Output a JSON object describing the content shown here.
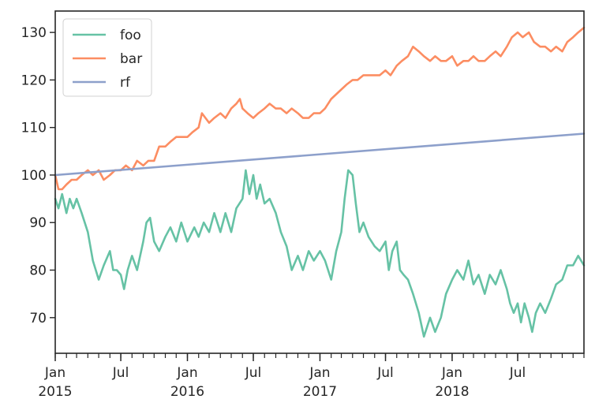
{
  "chart_data": {
    "type": "line",
    "title": "",
    "xlabel": "",
    "ylabel": "",
    "x_range": [
      "2015-01-01",
      "2018-12-31"
    ],
    "ylim": [
      62.5,
      134.5
    ],
    "grid": false,
    "legend_placement": "top-left",
    "y_ticks": [
      70,
      80,
      90,
      100,
      110,
      120,
      130
    ],
    "x_major_ticks": [
      {
        "date": "2015-01-01",
        "label": "Jan",
        "year": "2015"
      },
      {
        "date": "2015-07-01",
        "label": "Jul",
        "year": ""
      },
      {
        "date": "2016-01-01",
        "label": "Jan",
        "year": "2016"
      },
      {
        "date": "2016-07-01",
        "label": "Jul",
        "year": ""
      },
      {
        "date": "2017-01-01",
        "label": "Jan",
        "year": "2017"
      },
      {
        "date": "2017-07-01",
        "label": "Jul",
        "year": ""
      },
      {
        "date": "2018-01-01",
        "label": "Jan",
        "year": "2018"
      },
      {
        "date": "2018-07-01",
        "label": "Jul",
        "year": ""
      }
    ],
    "x_minor_ticks": "monthly",
    "colors": {
      "foo": "#66c2a5",
      "bar": "#fc8d62",
      "rf": "#8da0cb"
    },
    "series": [
      {
        "name": "foo",
        "color": "#66c2a5",
        "points": [
          [
            "2015-01-01",
            95
          ],
          [
            "2015-01-10",
            93
          ],
          [
            "2015-01-20",
            96
          ],
          [
            "2015-02-01",
            92
          ],
          [
            "2015-02-10",
            95
          ],
          [
            "2015-02-20",
            93
          ],
          [
            "2015-03-01",
            95
          ],
          [
            "2015-03-15",
            92
          ],
          [
            "2015-04-01",
            88
          ],
          [
            "2015-04-15",
            82
          ],
          [
            "2015-05-01",
            78
          ],
          [
            "2015-05-15",
            81
          ],
          [
            "2015-06-01",
            84
          ],
          [
            "2015-06-10",
            80
          ],
          [
            "2015-06-20",
            80
          ],
          [
            "2015-07-01",
            79
          ],
          [
            "2015-07-10",
            76
          ],
          [
            "2015-07-20",
            80
          ],
          [
            "2015-08-01",
            83
          ],
          [
            "2015-08-15",
            80
          ],
          [
            "2015-09-01",
            86
          ],
          [
            "2015-09-10",
            90
          ],
          [
            "2015-09-20",
            91
          ],
          [
            "2015-10-01",
            86
          ],
          [
            "2015-10-15",
            84
          ],
          [
            "2015-11-01",
            87
          ],
          [
            "2015-11-15",
            89
          ],
          [
            "2015-12-01",
            86
          ],
          [
            "2015-12-15",
            90
          ],
          [
            "2016-01-01",
            86
          ],
          [
            "2016-01-20",
            89
          ],
          [
            "2016-02-01",
            87
          ],
          [
            "2016-02-15",
            90
          ],
          [
            "2016-03-01",
            88
          ],
          [
            "2016-03-15",
            92
          ],
          [
            "2016-04-01",
            88
          ],
          [
            "2016-04-15",
            92
          ],
          [
            "2016-05-01",
            88
          ],
          [
            "2016-05-15",
            93
          ],
          [
            "2016-06-01",
            95
          ],
          [
            "2016-06-10",
            101
          ],
          [
            "2016-06-20",
            96
          ],
          [
            "2016-07-01",
            100
          ],
          [
            "2016-07-10",
            95
          ],
          [
            "2016-07-20",
            98
          ],
          [
            "2016-08-01",
            94
          ],
          [
            "2016-08-15",
            95
          ],
          [
            "2016-09-01",
            92
          ],
          [
            "2016-09-15",
            88
          ],
          [
            "2016-10-01",
            85
          ],
          [
            "2016-10-15",
            80
          ],
          [
            "2016-11-01",
            83
          ],
          [
            "2016-11-15",
            80
          ],
          [
            "2016-12-01",
            84
          ],
          [
            "2016-12-15",
            82
          ],
          [
            "2017-01-01",
            84
          ],
          [
            "2017-01-15",
            82
          ],
          [
            "2017-02-01",
            78
          ],
          [
            "2017-02-15",
            84
          ],
          [
            "2017-03-01",
            88
          ],
          [
            "2017-03-10",
            95
          ],
          [
            "2017-03-20",
            101
          ],
          [
            "2017-04-01",
            100
          ],
          [
            "2017-04-10",
            94
          ],
          [
            "2017-04-20",
            88
          ],
          [
            "2017-05-01",
            90
          ],
          [
            "2017-05-15",
            87
          ],
          [
            "2017-06-01",
            85
          ],
          [
            "2017-06-15",
            84
          ],
          [
            "2017-07-01",
            86
          ],
          [
            "2017-07-10",
            80
          ],
          [
            "2017-07-20",
            84
          ],
          [
            "2017-08-01",
            86
          ],
          [
            "2017-08-10",
            80
          ],
          [
            "2017-08-20",
            79
          ],
          [
            "2017-09-01",
            78
          ],
          [
            "2017-09-15",
            75
          ],
          [
            "2017-10-01",
            71
          ],
          [
            "2017-10-15",
            66
          ],
          [
            "2017-11-01",
            70
          ],
          [
            "2017-11-15",
            67
          ],
          [
            "2017-12-01",
            70
          ],
          [
            "2017-12-15",
            75
          ],
          [
            "2018-01-01",
            78
          ],
          [
            "2018-01-15",
            80
          ],
          [
            "2018-02-01",
            78
          ],
          [
            "2018-02-15",
            82
          ],
          [
            "2018-03-01",
            77
          ],
          [
            "2018-03-15",
            79
          ],
          [
            "2018-04-01",
            75
          ],
          [
            "2018-04-15",
            79
          ],
          [
            "2018-05-01",
            77
          ],
          [
            "2018-05-15",
            80
          ],
          [
            "2018-06-01",
            76
          ],
          [
            "2018-06-10",
            73
          ],
          [
            "2018-06-20",
            71
          ],
          [
            "2018-07-01",
            73
          ],
          [
            "2018-07-10",
            69
          ],
          [
            "2018-07-20",
            73
          ],
          [
            "2018-08-01",
            70
          ],
          [
            "2018-08-10",
            67
          ],
          [
            "2018-08-20",
            71
          ],
          [
            "2018-09-01",
            73
          ],
          [
            "2018-09-15",
            71
          ],
          [
            "2018-10-01",
            74
          ],
          [
            "2018-10-15",
            77
          ],
          [
            "2018-11-01",
            78
          ],
          [
            "2018-11-15",
            81
          ],
          [
            "2018-12-01",
            81
          ],
          [
            "2018-12-15",
            83
          ],
          [
            "2018-12-31",
            81
          ]
        ]
      },
      {
        "name": "bar",
        "color": "#fc8d62",
        "points": [
          [
            "2015-01-01",
            100
          ],
          [
            "2015-01-10",
            97
          ],
          [
            "2015-01-20",
            97
          ],
          [
            "2015-02-01",
            98
          ],
          [
            "2015-02-15",
            99
          ],
          [
            "2015-03-01",
            99
          ],
          [
            "2015-03-15",
            100
          ],
          [
            "2015-04-01",
            101
          ],
          [
            "2015-04-15",
            100
          ],
          [
            "2015-05-01",
            101
          ],
          [
            "2015-05-15",
            99
          ],
          [
            "2015-06-01",
            100
          ],
          [
            "2015-06-15",
            101
          ],
          [
            "2015-07-01",
            101
          ],
          [
            "2015-07-15",
            102
          ],
          [
            "2015-08-01",
            101
          ],
          [
            "2015-08-15",
            103
          ],
          [
            "2015-09-01",
            102
          ],
          [
            "2015-09-15",
            103
          ],
          [
            "2015-10-01",
            103
          ],
          [
            "2015-10-15",
            106
          ],
          [
            "2015-11-01",
            106
          ],
          [
            "2015-11-15",
            107
          ],
          [
            "2015-12-01",
            108
          ],
          [
            "2015-12-15",
            108
          ],
          [
            "2016-01-01",
            108
          ],
          [
            "2016-01-15",
            109
          ],
          [
            "2016-02-01",
            110
          ],
          [
            "2016-02-10",
            113
          ],
          [
            "2016-02-20",
            112
          ],
          [
            "2016-03-01",
            111
          ],
          [
            "2016-03-15",
            112
          ],
          [
            "2016-04-01",
            113
          ],
          [
            "2016-04-15",
            112
          ],
          [
            "2016-05-01",
            114
          ],
          [
            "2016-05-15",
            115
          ],
          [
            "2016-05-25",
            116
          ],
          [
            "2016-06-01",
            114
          ],
          [
            "2016-06-15",
            113
          ],
          [
            "2016-07-01",
            112
          ],
          [
            "2016-07-15",
            113
          ],
          [
            "2016-08-01",
            114
          ],
          [
            "2016-08-15",
            115
          ],
          [
            "2016-09-01",
            114
          ],
          [
            "2016-09-15",
            114
          ],
          [
            "2016-10-01",
            113
          ],
          [
            "2016-10-15",
            114
          ],
          [
            "2016-11-01",
            113
          ],
          [
            "2016-11-15",
            112
          ],
          [
            "2016-12-01",
            112
          ],
          [
            "2016-12-15",
            113
          ],
          [
            "2017-01-01",
            113
          ],
          [
            "2017-01-15",
            114
          ],
          [
            "2017-02-01",
            116
          ],
          [
            "2017-02-15",
            117
          ],
          [
            "2017-03-01",
            118
          ],
          [
            "2017-03-15",
            119
          ],
          [
            "2017-04-01",
            120
          ],
          [
            "2017-04-15",
            120
          ],
          [
            "2017-05-01",
            121
          ],
          [
            "2017-05-15",
            121
          ],
          [
            "2017-06-01",
            121
          ],
          [
            "2017-06-15",
            121
          ],
          [
            "2017-07-01",
            122
          ],
          [
            "2017-07-15",
            121
          ],
          [
            "2017-08-01",
            123
          ],
          [
            "2017-08-15",
            124
          ],
          [
            "2017-09-01",
            125
          ],
          [
            "2017-09-15",
            127
          ],
          [
            "2017-10-01",
            126
          ],
          [
            "2017-10-15",
            125
          ],
          [
            "2017-11-01",
            124
          ],
          [
            "2017-11-15",
            125
          ],
          [
            "2017-12-01",
            124
          ],
          [
            "2017-12-15",
            124
          ],
          [
            "2018-01-01",
            125
          ],
          [
            "2018-01-15",
            123
          ],
          [
            "2018-02-01",
            124
          ],
          [
            "2018-02-15",
            124
          ],
          [
            "2018-03-01",
            125
          ],
          [
            "2018-03-15",
            124
          ],
          [
            "2018-04-01",
            124
          ],
          [
            "2018-04-15",
            125
          ],
          [
            "2018-05-01",
            126
          ],
          [
            "2018-05-15",
            125
          ],
          [
            "2018-06-01",
            127
          ],
          [
            "2018-06-15",
            129
          ],
          [
            "2018-07-01",
            130
          ],
          [
            "2018-07-15",
            129
          ],
          [
            "2018-08-01",
            130
          ],
          [
            "2018-08-15",
            128
          ],
          [
            "2018-09-01",
            127
          ],
          [
            "2018-09-15",
            127
          ],
          [
            "2018-10-01",
            126
          ],
          [
            "2018-10-15",
            127
          ],
          [
            "2018-11-01",
            126
          ],
          [
            "2018-11-15",
            128
          ],
          [
            "2018-12-01",
            129
          ],
          [
            "2018-12-15",
            130
          ],
          [
            "2018-12-31",
            131
          ]
        ]
      },
      {
        "name": "rf",
        "color": "#8da0cb",
        "points": [
          [
            "2015-01-01",
            100
          ],
          [
            "2018-12-31",
            108.7
          ]
        ]
      }
    ]
  }
}
